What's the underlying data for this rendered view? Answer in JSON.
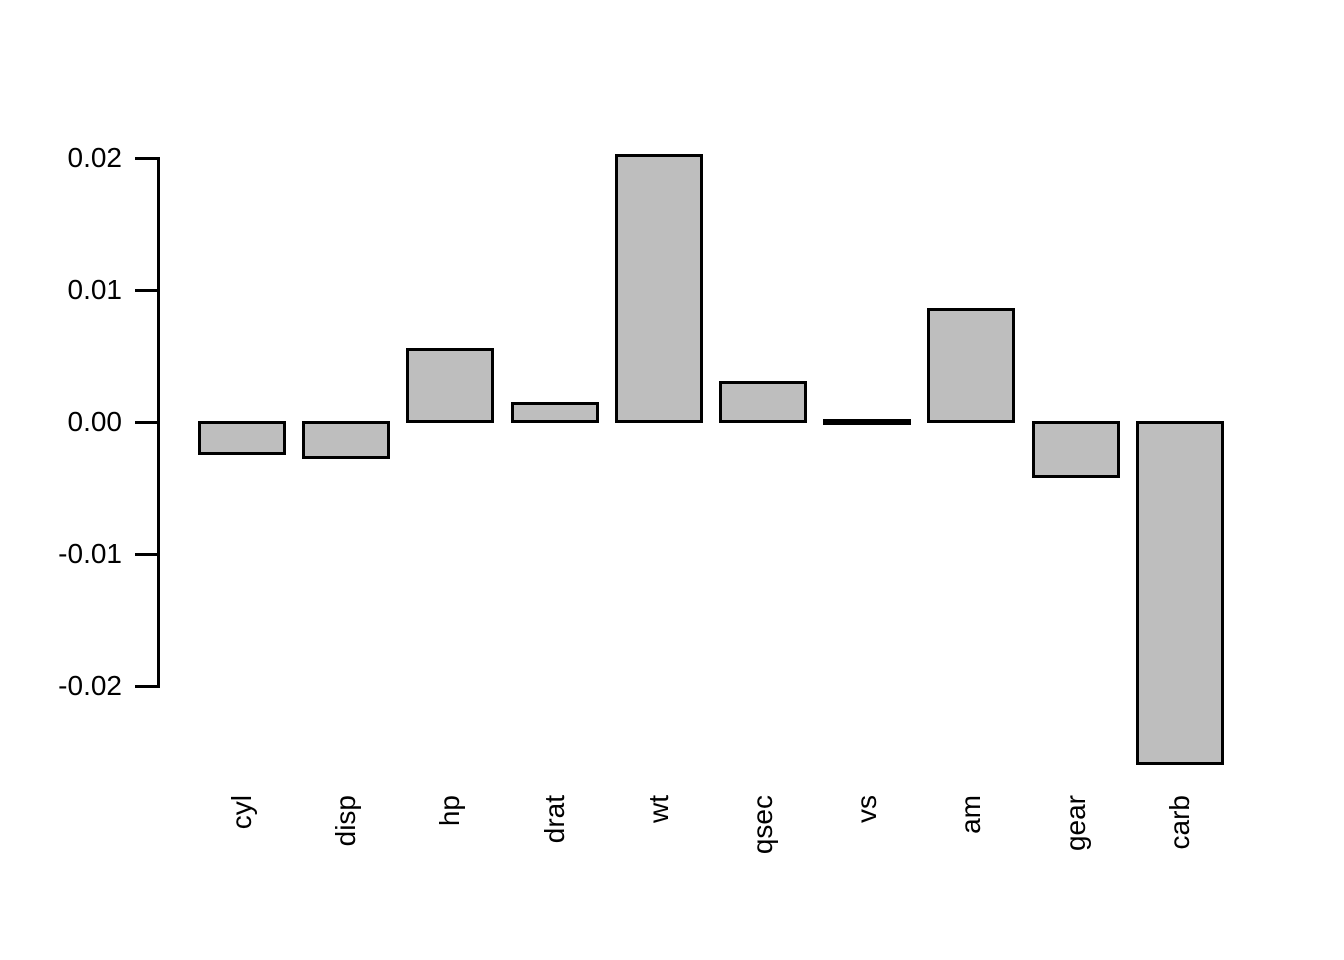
{
  "chart_data": {
    "type": "bar",
    "title": "",
    "xlabel": "",
    "ylabel": "",
    "categories": [
      "cyl",
      "disp",
      "hp",
      "drat",
      "wt",
      "qsec",
      "vs",
      "am",
      "gear",
      "carb"
    ],
    "values": [
      -0.0024,
      -0.0027,
      0.0055,
      0.0014,
      0.0202,
      0.003,
      0.0001,
      0.0085,
      -0.0041,
      -0.0259
    ],
    "ylim": [
      -0.026,
      0.0205
    ],
    "yticks": [
      0.02,
      0.01,
      0.0,
      -0.01,
      -0.02
    ],
    "ytick_labels": [
      "0.02",
      "0.01",
      "0.00",
      "-0.01",
      "-0.02"
    ],
    "x_label_rotation_deg": 90,
    "grid": false,
    "legend": null,
    "colors": {
      "bar_fill": "#BEBEBE",
      "bar_border": "#000000",
      "axis": "#000000",
      "background": "#FFFFFF"
    }
  }
}
